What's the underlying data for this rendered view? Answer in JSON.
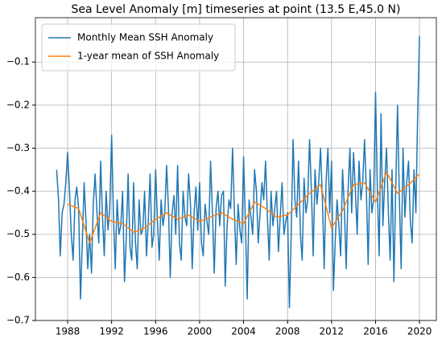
{
  "chart_data": {
    "type": "line",
    "title": "Sea Level Anomaly [m] timeseries at point (13.5 E,45.0 N)",
    "xlim": [
      1985.07,
      2021.53
    ],
    "ylim": [
      -0.7,
      0.003
    ],
    "xticks": [
      1988,
      1992,
      1996,
      2000,
      2004,
      2008,
      2012,
      2016,
      2020
    ],
    "yticks": [
      {
        "value": -0.7,
        "label": "−0.7"
      },
      {
        "value": -0.6,
        "label": "−0.6"
      },
      {
        "value": -0.5,
        "label": "−0.5"
      },
      {
        "value": -0.4,
        "label": "−0.4"
      },
      {
        "value": -0.3,
        "label": "−0.3"
      },
      {
        "value": -0.2,
        "label": "−0.2"
      },
      {
        "value": -0.1,
        "label": "−0.1"
      }
    ],
    "grid": true,
    "legend": "upper left",
    "series": [
      {
        "name": "Monthly Mean SSH Anomaly",
        "color": "#1f77b4",
        "x": [
          1987,
          1987.17,
          1987.33,
          1987.5,
          1987.67,
          1987.83,
          1988,
          1988.17,
          1988.33,
          1988.5,
          1988.67,
          1988.83,
          1989,
          1989.17,
          1989.33,
          1989.5,
          1989.67,
          1989.83,
          1990,
          1990.17,
          1990.33,
          1990.5,
          1990.67,
          1990.83,
          1991,
          1991.17,
          1991.33,
          1991.5,
          1991.67,
          1991.83,
          1992,
          1992.17,
          1992.33,
          1992.5,
          1992.67,
          1992.83,
          1993,
          1993.17,
          1993.33,
          1993.5,
          1993.67,
          1993.83,
          1994,
          1994.17,
          1994.33,
          1994.5,
          1994.67,
          1994.83,
          1995,
          1995.17,
          1995.33,
          1995.5,
          1995.67,
          1995.83,
          1996,
          1996.17,
          1996.33,
          1996.5,
          1996.67,
          1996.83,
          1997,
          1997.17,
          1997.33,
          1997.5,
          1997.67,
          1997.83,
          1998,
          1998.17,
          1998.33,
          1998.5,
          1998.67,
          1998.83,
          1999,
          1999.17,
          1999.33,
          1999.5,
          1999.67,
          1999.83,
          2000,
          2000.17,
          2000.33,
          2000.5,
          2000.67,
          2000.83,
          2001,
          2001.17,
          2001.33,
          2001.5,
          2001.67,
          2001.83,
          2002,
          2002.17,
          2002.33,
          2002.5,
          2002.67,
          2002.83,
          2003,
          2003.17,
          2003.33,
          2003.5,
          2003.67,
          2003.83,
          2004,
          2004.17,
          2004.33,
          2004.5,
          2004.67,
          2004.83,
          2005,
          2005.17,
          2005.33,
          2005.5,
          2005.67,
          2005.83,
          2006,
          2006.17,
          2006.33,
          2006.5,
          2006.67,
          2006.83,
          2007,
          2007.17,
          2007.33,
          2007.5,
          2007.67,
          2007.83,
          2008,
          2008.17,
          2008.33,
          2008.5,
          2008.67,
          2008.83,
          2009,
          2009.17,
          2009.33,
          2009.5,
          2009.67,
          2009.83,
          2010,
          2010.17,
          2010.33,
          2010.5,
          2010.67,
          2010.83,
          2011,
          2011.17,
          2011.33,
          2011.5,
          2011.67,
          2011.83,
          2012,
          2012.17,
          2012.33,
          2012.5,
          2012.67,
          2012.83,
          2013,
          2013.17,
          2013.33,
          2013.5,
          2013.67,
          2013.83,
          2014,
          2014.17,
          2014.33,
          2014.5,
          2014.67,
          2014.83,
          2015,
          2015.17,
          2015.33,
          2015.5,
          2015.67,
          2015.83,
          2016,
          2016.17,
          2016.33,
          2016.5,
          2016.67,
          2016.83,
          2017,
          2017.17,
          2017.33,
          2017.5,
          2017.67,
          2017.83,
          2018,
          2018.17,
          2018.33,
          2018.5,
          2018.67,
          2018.83,
          2019,
          2019.17,
          2019.33,
          2019.5,
          2019.67,
          2019.83,
          2020
        ],
        "values": [
          -0.35,
          -0.42,
          -0.55,
          -0.45,
          -0.43,
          -0.38,
          -0.31,
          -0.4,
          -0.5,
          -0.56,
          -0.42,
          -0.39,
          -0.44,
          -0.65,
          -0.52,
          -0.38,
          -0.47,
          -0.58,
          -0.5,
          -0.59,
          -0.43,
          -0.36,
          -0.45,
          -0.52,
          -0.33,
          -0.46,
          -0.55,
          -0.4,
          -0.49,
          -0.44,
          -0.27,
          -0.46,
          -0.58,
          -0.42,
          -0.5,
          -0.48,
          -0.4,
          -0.61,
          -0.51,
          -0.36,
          -0.53,
          -0.56,
          -0.38,
          -0.52,
          -0.58,
          -0.42,
          -0.5,
          -0.49,
          -0.4,
          -0.55,
          -0.47,
          -0.36,
          -0.53,
          -0.5,
          -0.35,
          -0.47,
          -0.56,
          -0.42,
          -0.48,
          -0.45,
          -0.34,
          -0.44,
          -0.6,
          -0.45,
          -0.41,
          -0.5,
          -0.34,
          -0.52,
          -0.56,
          -0.4,
          -0.46,
          -0.48,
          -0.36,
          -0.43,
          -0.58,
          -0.45,
          -0.39,
          -0.49,
          -0.38,
          -0.52,
          -0.55,
          -0.43,
          -0.47,
          -0.5,
          -0.33,
          -0.45,
          -0.59,
          -0.44,
          -0.4,
          -0.48,
          -0.41,
          -0.4,
          -0.62,
          -0.48,
          -0.42,
          -0.44,
          -0.3,
          -0.45,
          -0.57,
          -0.43,
          -0.49,
          -0.52,
          -0.32,
          -0.48,
          -0.65,
          -0.42,
          -0.46,
          -0.5,
          -0.35,
          -0.4,
          -0.52,
          -0.45,
          -0.38,
          -0.42,
          -0.33,
          -0.46,
          -0.56,
          -0.4,
          -0.48,
          -0.44,
          -0.4,
          -0.54,
          -0.46,
          -0.38,
          -0.5,
          -0.47,
          -0.45,
          -0.67,
          -0.5,
          -0.28,
          -0.42,
          -0.46,
          -0.33,
          -0.5,
          -0.56,
          -0.37,
          -0.45,
          -0.42,
          -0.28,
          -0.4,
          -0.55,
          -0.35,
          -0.43,
          -0.38,
          -0.3,
          -0.42,
          -0.58,
          -0.38,
          -0.3,
          -0.45,
          -0.33,
          -0.63,
          -0.52,
          -0.42,
          -0.48,
          -0.55,
          -0.35,
          -0.44,
          -0.58,
          -0.4,
          -0.3,
          -0.45,
          -0.31,
          -0.4,
          -0.5,
          -0.33,
          -0.42,
          -0.38,
          -0.28,
          -0.4,
          -0.57,
          -0.35,
          -0.45,
          -0.42,
          -0.17,
          -0.4,
          -0.55,
          -0.22,
          -0.48,
          -0.38,
          -0.3,
          -0.45,
          -0.56,
          -0.35,
          -0.61,
          -0.4,
          -0.2,
          -0.42,
          -0.58,
          -0.3,
          -0.46,
          -0.38,
          -0.33,
          -0.47,
          -0.52,
          -0.35,
          -0.45,
          -0.22,
          -0.04
        ]
      },
      {
        "name": "1-year mean of SSH Anomaly",
        "color": "#ff7f0e",
        "x": [
          1988,
          1989,
          1990,
          1991,
          1992,
          1993,
          1994,
          1995,
          1996,
          1997,
          1998,
          1999,
          2000,
          2001,
          2002,
          2003,
          2004,
          2005,
          2006,
          2007,
          2008,
          2009,
          2010,
          2011,
          2012,
          2013,
          2014,
          2015,
          2016,
          2017,
          2018,
          2019,
          2020
        ],
        "values": [
          -0.43,
          -0.44,
          -0.52,
          -0.45,
          -0.47,
          -0.475,
          -0.495,
          -0.485,
          -0.465,
          -0.45,
          -0.465,
          -0.455,
          -0.47,
          -0.46,
          -0.45,
          -0.465,
          -0.475,
          -0.425,
          -0.44,
          -0.46,
          -0.455,
          -0.43,
          -0.405,
          -0.385,
          -0.485,
          -0.445,
          -0.385,
          -0.38,
          -0.425,
          -0.355,
          -0.405,
          -0.385,
          -0.36
        ]
      }
    ]
  }
}
